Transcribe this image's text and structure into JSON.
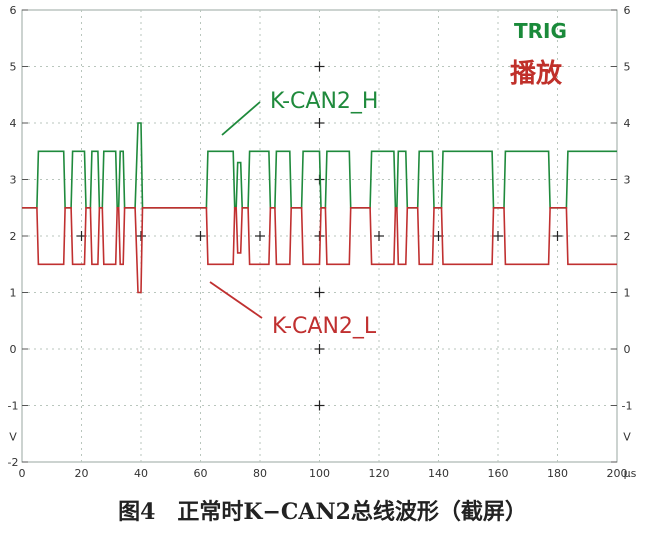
{
  "chart_data": {
    "type": "line",
    "x_unit": "µs",
    "xlim": [
      0,
      200
    ],
    "ylim": [
      -2,
      6
    ],
    "x_ticks": [
      "0",
      "20",
      "40",
      "60",
      "80",
      "100",
      "120",
      "140",
      "160",
      "180",
      "200"
    ],
    "y_ticks_left": [
      "6",
      "5",
      "4",
      "3",
      "2",
      "1",
      "0",
      "-1",
      "-2"
    ],
    "y_ticks_right": [
      "6",
      "5",
      "4",
      "3",
      "2",
      "1",
      "0",
      "-1"
    ],
    "y_unit": "V",
    "grid": true,
    "series": [
      {
        "name": "K-CAN2_H",
        "color": "#1f8a3c",
        "recessive": 2.5,
        "dominant": 3.5,
        "points": [
          [
            0,
            2.5
          ],
          [
            5,
            2.5
          ],
          [
            5.5,
            3.5
          ],
          [
            14,
            3.5
          ],
          [
            14.5,
            2.5
          ],
          [
            16.5,
            2.5
          ],
          [
            17,
            3.5
          ],
          [
            21,
            3.5
          ],
          [
            21.5,
            2.5
          ],
          [
            23,
            2.5
          ],
          [
            23.5,
            3.5
          ],
          [
            25.5,
            3.5
          ],
          [
            26,
            2.5
          ],
          [
            27,
            2.5
          ],
          [
            27.5,
            3.5
          ],
          [
            31.5,
            3.5
          ],
          [
            32,
            2.5
          ],
          [
            32.5,
            2.5
          ],
          [
            33,
            3.5
          ],
          [
            34,
            3.5
          ],
          [
            34.5,
            2.5
          ],
          [
            38,
            2.5
          ],
          [
            39,
            4.0
          ],
          [
            40,
            4.0
          ],
          [
            40.5,
            2.5
          ],
          [
            62,
            2.5
          ],
          [
            62.5,
            3.5
          ],
          [
            71,
            3.5
          ],
          [
            71.5,
            2.5
          ],
          [
            72,
            2.5
          ],
          [
            72.5,
            3.3
          ],
          [
            73.5,
            3.3
          ],
          [
            74,
            2.5
          ],
          [
            76,
            2.5
          ],
          [
            76.5,
            3.5
          ],
          [
            83,
            3.5
          ],
          [
            83.5,
            2.5
          ],
          [
            85,
            2.5
          ],
          [
            85.5,
            3.5
          ],
          [
            90,
            3.5
          ],
          [
            90.5,
            2.5
          ],
          [
            94,
            2.5
          ],
          [
            94.5,
            3.5
          ],
          [
            100,
            3.5
          ],
          [
            100.5,
            2.5
          ],
          [
            102,
            2.5
          ],
          [
            102.5,
            3.5
          ],
          [
            110,
            3.5
          ],
          [
            110.5,
            2.5
          ],
          [
            117,
            2.5
          ],
          [
            117.5,
            3.5
          ],
          [
            125,
            3.5
          ],
          [
            125.5,
            2.5
          ],
          [
            126,
            2.5
          ],
          [
            126.5,
            3.5
          ],
          [
            129,
            3.5
          ],
          [
            129.5,
            2.5
          ],
          [
            133,
            2.5
          ],
          [
            133.5,
            3.5
          ],
          [
            138,
            3.5
          ],
          [
            138.5,
            2.5
          ],
          [
            141,
            2.5
          ],
          [
            141.5,
            3.5
          ],
          [
            158,
            3.5
          ],
          [
            158.5,
            2.5
          ],
          [
            162,
            2.5
          ],
          [
            162.5,
            3.5
          ],
          [
            177,
            3.5
          ],
          [
            177.5,
            2.5
          ],
          [
            183,
            2.5
          ],
          [
            183.5,
            3.5
          ],
          [
            200,
            3.5
          ]
        ]
      },
      {
        "name": "K-CAN2_L",
        "color": "#c03030",
        "recessive": 2.5,
        "dominant": 1.5,
        "points": [
          [
            0,
            2.5
          ],
          [
            5,
            2.5
          ],
          [
            5.5,
            1.5
          ],
          [
            14,
            1.5
          ],
          [
            14.5,
            2.5
          ],
          [
            16.5,
            2.5
          ],
          [
            17,
            1.5
          ],
          [
            21,
            1.5
          ],
          [
            21.5,
            2.5
          ],
          [
            23,
            2.5
          ],
          [
            23.5,
            1.5
          ],
          [
            25.5,
            1.5
          ],
          [
            26,
            2.5
          ],
          [
            27,
            2.5
          ],
          [
            27.5,
            1.5
          ],
          [
            31.5,
            1.5
          ],
          [
            32,
            2.5
          ],
          [
            32.5,
            2.5
          ],
          [
            33,
            1.5
          ],
          [
            34,
            1.5
          ],
          [
            34.5,
            2.5
          ],
          [
            38,
            2.5
          ],
          [
            39,
            1.0
          ],
          [
            40,
            1.0
          ],
          [
            40.5,
            2.5
          ],
          [
            62,
            2.5
          ],
          [
            62.5,
            1.5
          ],
          [
            71,
            1.5
          ],
          [
            71.5,
            2.5
          ],
          [
            72,
            2.5
          ],
          [
            72.5,
            1.7
          ],
          [
            73.5,
            1.7
          ],
          [
            74,
            2.5
          ],
          [
            76,
            2.5
          ],
          [
            76.5,
            1.5
          ],
          [
            83,
            1.5
          ],
          [
            83.5,
            2.5
          ],
          [
            85,
            2.5
          ],
          [
            85.5,
            1.5
          ],
          [
            90,
            1.5
          ],
          [
            90.5,
            2.5
          ],
          [
            94,
            2.5
          ],
          [
            94.5,
            1.5
          ],
          [
            100,
            1.5
          ],
          [
            100.5,
            2.5
          ],
          [
            102,
            2.5
          ],
          [
            102.5,
            1.5
          ],
          [
            110,
            1.5
          ],
          [
            110.5,
            2.5
          ],
          [
            117,
            2.5
          ],
          [
            117.5,
            1.5
          ],
          [
            125,
            1.5
          ],
          [
            125.5,
            2.5
          ],
          [
            126,
            2.5
          ],
          [
            126.5,
            1.5
          ],
          [
            129,
            1.5
          ],
          [
            129.5,
            2.5
          ],
          [
            133,
            2.5
          ],
          [
            133.5,
            1.5
          ],
          [
            138,
            1.5
          ],
          [
            138.5,
            2.5
          ],
          [
            141,
            2.5
          ],
          [
            141.5,
            1.5
          ],
          [
            158,
            1.5
          ],
          [
            158.5,
            2.5
          ],
          [
            162,
            2.5
          ],
          [
            162.5,
            1.5
          ],
          [
            177,
            1.5
          ],
          [
            177.5,
            2.5
          ],
          [
            183,
            2.5
          ],
          [
            183.5,
            1.5
          ],
          [
            200,
            1.5
          ]
        ]
      }
    ],
    "annotations": {
      "trig_label": "TRIG",
      "mode_label": "播放",
      "can_h_label": "K-CAN2_H",
      "can_l_label": "K-CAN2_L"
    }
  },
  "caption": "图4　正常时K−CAN2总线波形（截屏）"
}
